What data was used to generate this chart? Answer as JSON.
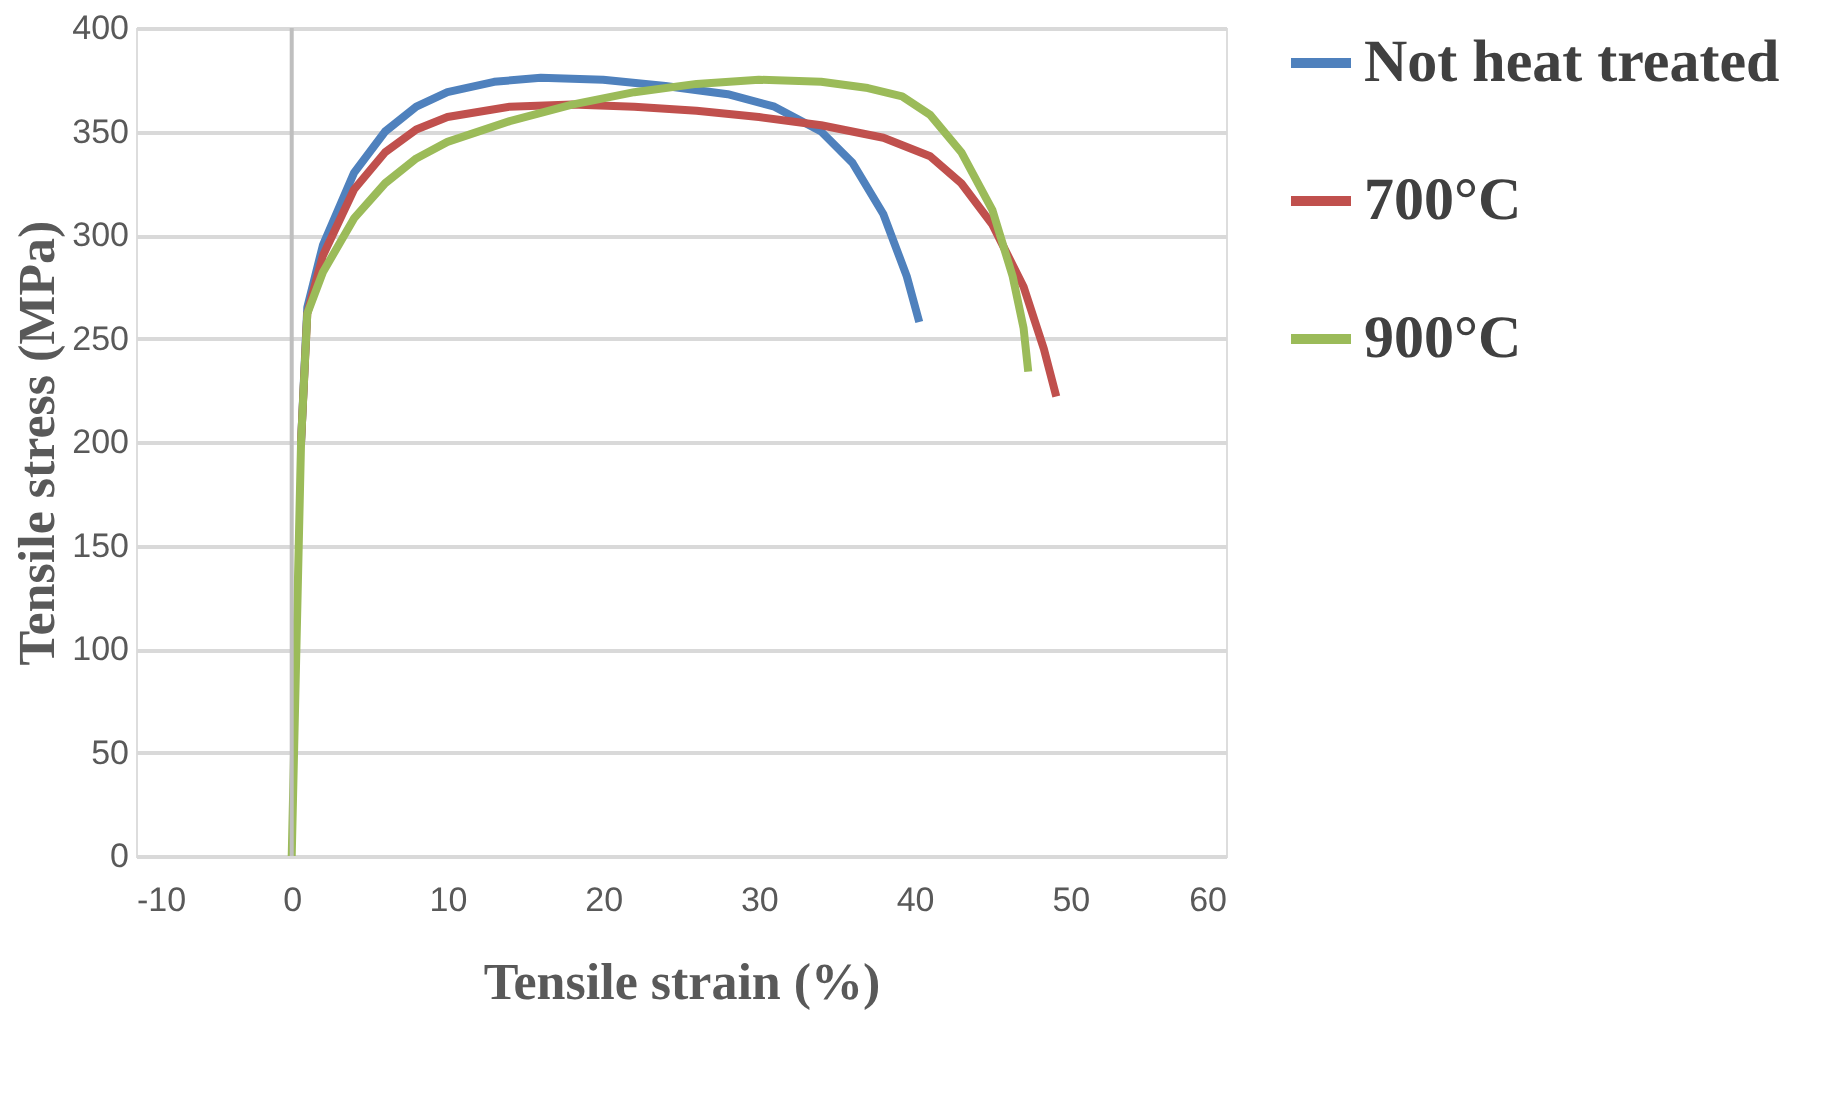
{
  "chart_data": {
    "type": "line",
    "xlabel": "Tensile strain (%)",
    "ylabel": "Tensile stress (MPa)",
    "xlim": [
      -10,
      60
    ],
    "xticks": [
      -10,
      0,
      10,
      20,
      30,
      40,
      50,
      60
    ],
    "ylim": [
      0,
      400
    ],
    "yticks": [
      0,
      50,
      100,
      150,
      200,
      250,
      300,
      350,
      400
    ],
    "grid": "y",
    "legend": "right",
    "marker": "none",
    "line_style": "solid",
    "series": [
      {
        "name": "Not heat treated",
        "color": "#4f81bd",
        "x": [
          0.6,
          1,
          2,
          4,
          6,
          8,
          10,
          13,
          16,
          20,
          24,
          28,
          31,
          34,
          36,
          38,
          39.5,
          40.3
        ],
        "values": [
          200,
          265,
          295,
          330,
          350,
          362,
          369,
          374,
          376,
          375,
          372,
          368,
          362,
          350,
          335,
          310,
          280,
          258
        ]
      },
      {
        "name": "700°C",
        "color": "#c0504d",
        "x": [
          0.6,
          1,
          2,
          4,
          6,
          8,
          10,
          14,
          18,
          22,
          26,
          30,
          34,
          38,
          41,
          43,
          45,
          47,
          48.3,
          49.1
        ],
        "values": [
          200,
          262,
          290,
          322,
          340,
          351,
          357,
          362,
          363,
          362,
          360,
          357,
          353,
          347,
          338,
          325,
          305,
          275,
          245,
          222
        ]
      },
      {
        "name": "900°C",
        "color": "#9bbb59",
        "x": [
          0,
          0.3,
          0.6,
          1,
          2,
          4,
          6,
          8,
          10,
          14,
          18,
          22,
          26,
          30,
          34,
          37,
          39.2,
          41,
          43,
          45,
          46.3,
          47,
          47.3
        ],
        "values": [
          0,
          100,
          200,
          262,
          282,
          308,
          325,
          337,
          345,
          355,
          363,
          369,
          373,
          375,
          374,
          371,
          367,
          358,
          340,
          312,
          280,
          255,
          234
        ]
      }
    ]
  }
}
